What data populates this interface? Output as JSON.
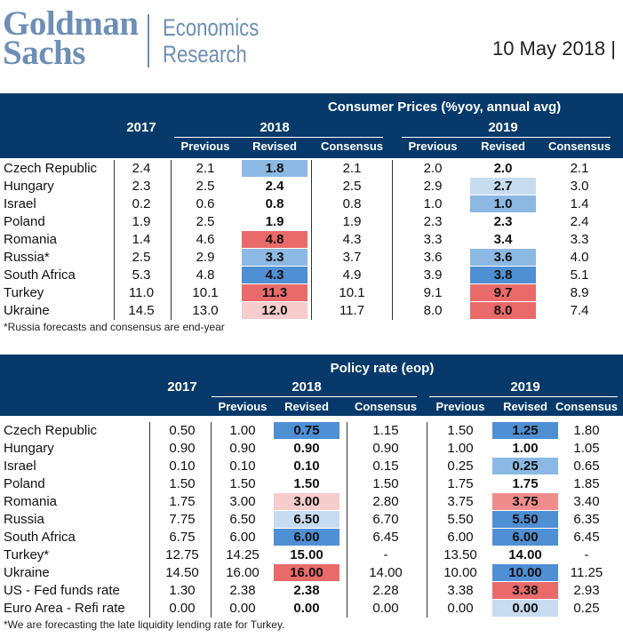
{
  "header": {
    "logo_line1": "Goldman",
    "logo_line2": "Sachs",
    "division_line1": "Economics",
    "division_line2": "Research",
    "date": "10 May 2018 |"
  },
  "colors": {
    "header_bar": "#073a6b",
    "logo": "#6e8fb5",
    "blue_light": "#c7dcf0",
    "blue_mid": "#8cb9e3",
    "blue_dark": "#4f8fd4",
    "red_light": "#f6cccc",
    "red_mid": "#f08c8c",
    "red_dark": "#ea6a6a"
  },
  "cpi_table": {
    "title": "Consumer Prices (%yoy, annual avg)",
    "years": [
      "2017",
      "2018",
      "2019"
    ],
    "subheaders": [
      "Previous",
      "Revised",
      "Consensus",
      "Previous",
      "Revised",
      "Consensus"
    ],
    "rows": [
      {
        "country": "Czech Republic",
        "cells": [
          "2.4",
          "2.1",
          "1.8",
          "2.1",
          "2.0",
          "2.0",
          "2.1"
        ],
        "colors": [
          "",
          "",
          "blue_mid",
          "",
          "",
          "",
          ""
        ]
      },
      {
        "country": "Hungary",
        "cells": [
          "2.3",
          "2.5",
          "2.4",
          "2.5",
          "2.9",
          "2.7",
          "3.0"
        ],
        "colors": [
          "",
          "",
          "",
          "",
          "",
          "blue_light",
          ""
        ]
      },
      {
        "country": "Israel",
        "cells": [
          "0.2",
          "0.6",
          "0.8",
          "0.8",
          "1.0",
          "1.0",
          "1.4"
        ],
        "colors": [
          "",
          "",
          "",
          "",
          "",
          "blue_mid",
          ""
        ]
      },
      {
        "country": "Poland",
        "cells": [
          "1.9",
          "2.5",
          "1.9",
          "1.9",
          "2.3",
          "2.3",
          "2.4"
        ],
        "colors": [
          "",
          "",
          "",
          "",
          "",
          "",
          ""
        ]
      },
      {
        "country": "Romania",
        "cells": [
          "1.4",
          "4.6",
          "4.8",
          "4.3",
          "3.3",
          "3.4",
          "3.3"
        ],
        "colors": [
          "",
          "",
          "red_dark",
          "",
          "",
          "",
          ""
        ]
      },
      {
        "country": "Russia*",
        "cells": [
          "2.5",
          "2.9",
          "3.3",
          "3.7",
          "3.6",
          "3.6",
          "4.0"
        ],
        "colors": [
          "",
          "",
          "blue_mid",
          "",
          "",
          "blue_mid",
          ""
        ]
      },
      {
        "country": "South Africa",
        "cells": [
          "5.3",
          "4.8",
          "4.3",
          "4.9",
          "3.9",
          "3.8",
          "5.1"
        ],
        "colors": [
          "",
          "",
          "blue_dark",
          "",
          "",
          "blue_dark",
          ""
        ]
      },
      {
        "country": "Turkey",
        "cells": [
          "11.0",
          "10.1",
          "11.3",
          "10.1",
          "9.1",
          "9.7",
          "8.9"
        ],
        "colors": [
          "",
          "",
          "red_dark",
          "",
          "",
          "red_dark",
          ""
        ]
      },
      {
        "country": "Ukraine",
        "cells": [
          "14.5",
          "13.0",
          "12.0",
          "11.7",
          "8.0",
          "8.0",
          "7.4"
        ],
        "colors": [
          "",
          "",
          "red_light",
          "",
          "",
          "red_dark",
          ""
        ]
      }
    ],
    "footnote": "*Russia forecasts and consensus are end-year"
  },
  "policy_table": {
    "title": "Policy rate (eop)",
    "years": [
      "2017",
      "2018",
      "2019"
    ],
    "subheaders": [
      "Previous",
      "Revised",
      "Consensus",
      "Previous",
      "Revised",
      "Consensus"
    ],
    "rows": [
      {
        "country": "Czech Republic",
        "cells": [
          "0.50",
          "1.00",
          "0.75",
          "1.15",
          "1.50",
          "1.25",
          "1.80"
        ],
        "colors": [
          "",
          "",
          "blue_dark",
          "",
          "",
          "blue_dark",
          ""
        ]
      },
      {
        "country": "Hungary",
        "cells": [
          "0.90",
          "0.90",
          "0.90",
          "0.90",
          "1.00",
          "1.00",
          "1.05"
        ],
        "colors": [
          "",
          "",
          "",
          "",
          "",
          "",
          ""
        ]
      },
      {
        "country": "Israel",
        "cells": [
          "0.10",
          "0.10",
          "0.10",
          "0.15",
          "0.25",
          "0.25",
          "0.65"
        ],
        "colors": [
          "",
          "",
          "",
          "",
          "",
          "blue_mid",
          ""
        ]
      },
      {
        "country": "Poland",
        "cells": [
          "1.50",
          "1.50",
          "1.50",
          "1.50",
          "1.75",
          "1.75",
          "1.85"
        ],
        "colors": [
          "",
          "",
          "",
          "",
          "",
          "",
          ""
        ]
      },
      {
        "country": "Romania",
        "cells": [
          "1.75",
          "3.00",
          "3.00",
          "2.80",
          "3.75",
          "3.75",
          "3.40"
        ],
        "colors": [
          "",
          "",
          "red_light",
          "",
          "",
          "red_mid",
          ""
        ]
      },
      {
        "country": "Russia",
        "cells": [
          "7.75",
          "6.50",
          "6.50",
          "6.70",
          "5.50",
          "5.50",
          "6.35"
        ],
        "colors": [
          "",
          "",
          "blue_light",
          "",
          "",
          "blue_dark",
          ""
        ]
      },
      {
        "country": "South Africa",
        "cells": [
          "6.75",
          "6.00",
          "6.00",
          "6.45",
          "6.00",
          "6.00",
          "6.45"
        ],
        "colors": [
          "",
          "",
          "blue_dark",
          "",
          "",
          "blue_dark",
          ""
        ]
      },
      {
        "country": "Turkey*",
        "cells": [
          "12.75",
          "14.25",
          "15.00",
          "-",
          "13.50",
          "14.00",
          "-"
        ],
        "colors": [
          "",
          "",
          "",
          "",
          "",
          "",
          ""
        ]
      },
      {
        "country": "Ukraine",
        "cells": [
          "14.50",
          "16.00",
          "16.00",
          "14.00",
          "10.00",
          "10.00",
          "11.25"
        ],
        "colors": [
          "",
          "",
          "red_dark",
          "",
          "",
          "blue_dark",
          ""
        ]
      },
      {
        "country": "US - Fed funds rate",
        "cells": [
          "1.30",
          "2.38",
          "2.38",
          "2.28",
          "3.38",
          "3.38",
          "2.93"
        ],
        "colors": [
          "",
          "",
          "",
          "",
          "",
          "red_dark",
          ""
        ]
      },
      {
        "country": "Euro Area - Refi rate",
        "cells": [
          "0.00",
          "0.00",
          "0.00",
          "0.00",
          "0.00",
          "0.00",
          "0.25"
        ],
        "colors": [
          "",
          "",
          "",
          "",
          "",
          "blue_light",
          ""
        ]
      }
    ],
    "footnote": "*We are forecasting the late liquidity lending rate for Turkey."
  }
}
